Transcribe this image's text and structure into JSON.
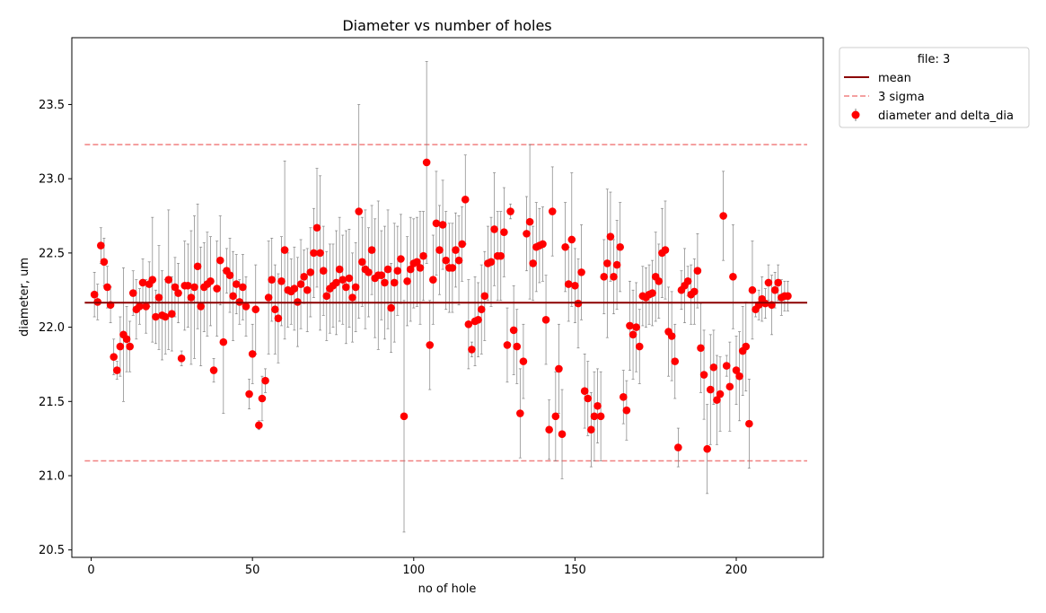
{
  "chart_data": {
    "type": "scatter",
    "title": "Diameter vs number of holes",
    "xlabel": "no of hole",
    "ylabel": "diameter, um",
    "xlim": [
      -6,
      227
    ],
    "ylim": [
      20.45,
      23.95
    ],
    "x_ticks": [
      0,
      50,
      100,
      150,
      200
    ],
    "y_ticks": [
      20.5,
      21.0,
      21.5,
      22.0,
      22.5,
      23.0,
      23.5
    ],
    "grid": false,
    "legend": {
      "title": "file: 3",
      "placement": "outside-top-right",
      "entries": [
        "mean",
        "3 sigma",
        "diameter and delta_dia"
      ]
    },
    "mean": 22.165,
    "sigma3_upper": 23.23,
    "sigma3_lower": 21.1,
    "mean_color": "#8b0000",
    "sigma_color": "#f08080",
    "point_color": "#ff0000",
    "errorbar_color": "#808080",
    "x": [
      1,
      2,
      3,
      4,
      5,
      6,
      7,
      8,
      9,
      10,
      11,
      12,
      13,
      14,
      15,
      16,
      17,
      18,
      19,
      20,
      21,
      22,
      23,
      24,
      25,
      26,
      27,
      28,
      29,
      30,
      31,
      32,
      33,
      34,
      35,
      36,
      37,
      38,
      39,
      40,
      41,
      42,
      43,
      44,
      45,
      46,
      47,
      48,
      49,
      50,
      51,
      52,
      53,
      54,
      55,
      56,
      57,
      58,
      59,
      60,
      61,
      62,
      63,
      64,
      65,
      66,
      67,
      68,
      69,
      70,
      71,
      72,
      73,
      74,
      75,
      76,
      77,
      78,
      79,
      80,
      81,
      82,
      83,
      84,
      85,
      86,
      87,
      88,
      89,
      90,
      91,
      92,
      93,
      94,
      95,
      96,
      97,
      98,
      99,
      100,
      101,
      102,
      103,
      104,
      105,
      106,
      107,
      108,
      109,
      110,
      111,
      112,
      113,
      114,
      115,
      116,
      117,
      118,
      119,
      120,
      121,
      122,
      123,
      124,
      125,
      126,
      127,
      128,
      129,
      130,
      131,
      132,
      133,
      134,
      135,
      136,
      137,
      138,
      139,
      140,
      141,
      142,
      143,
      144,
      145,
      146,
      147,
      148,
      149,
      150,
      151,
      152,
      153,
      154,
      155,
      156,
      157,
      158,
      159,
      160,
      161,
      162,
      163,
      164,
      165,
      166,
      167,
      168,
      169,
      170,
      171,
      172,
      173,
      174,
      175,
      176,
      177,
      178,
      179,
      180,
      181,
      182,
      183,
      184,
      185,
      186,
      187,
      188,
      189,
      190,
      191,
      192,
      193,
      194,
      195,
      196,
      197,
      198,
      199,
      200,
      201,
      202,
      203,
      204,
      205,
      206,
      207,
      208,
      209,
      210,
      211,
      212,
      213,
      214,
      215,
      216
    ],
    "y": [
      22.22,
      22.17,
      22.55,
      22.44,
      22.27,
      22.15,
      21.8,
      21.71,
      21.87,
      21.95,
      21.92,
      21.87,
      22.23,
      22.12,
      22.14,
      22.3,
      22.14,
      22.29,
      22.32,
      22.07,
      22.2,
      22.08,
      22.07,
      22.32,
      22.09,
      22.27,
      22.23,
      21.79,
      22.28,
      22.28,
      22.2,
      22.27,
      22.41,
      22.14,
      22.27,
      22.29,
      22.31,
      21.71,
      22.26,
      22.45,
      21.9,
      22.38,
      22.35,
      22.21,
      22.29,
      22.17,
      22.27,
      22.14,
      21.55,
      21.82,
      22.12,
      21.34,
      21.52,
      21.64,
      22.2,
      22.32,
      22.12,
      22.06,
      22.31,
      22.52,
      22.25,
      22.24,
      22.26,
      22.17,
      22.29,
      22.34,
      22.25,
      22.37,
      22.5,
      22.67,
      22.5,
      22.38,
      22.21,
      22.26,
      22.28,
      22.3,
      22.39,
      22.32,
      22.27,
      22.33,
      22.2,
      22.27,
      22.78,
      22.44,
      22.39,
      22.37,
      22.52,
      22.33,
      22.35,
      22.35,
      22.3,
      22.39,
      22.13,
      22.3,
      22.38,
      22.46,
      21.4,
      22.31,
      22.39,
      22.43,
      22.44,
      22.4,
      22.48,
      23.11,
      21.88,
      22.32,
      22.7,
      22.52,
      22.69,
      22.45,
      22.4,
      22.4,
      22.52,
      22.45,
      22.56,
      22.86,
      22.02,
      21.85,
      22.04,
      22.05,
      22.12,
      22.21,
      22.43,
      22.44,
      22.66,
      22.48,
      22.48,
      22.64,
      21.88,
      22.78,
      21.98,
      21.87,
      21.42,
      21.77,
      22.63,
      22.71,
      22.43,
      22.54,
      22.55,
      22.56,
      22.05,
      21.31,
      22.78,
      21.4,
      21.72,
      21.28,
      22.54,
      22.29,
      22.59,
      22.28,
      22.16,
      22.37,
      21.57,
      21.52,
      21.31,
      21.4,
      21.47,
      21.4,
      22.34,
      22.43,
      22.61,
      22.34,
      22.42,
      22.54,
      21.53,
      21.44,
      22.01,
      21.95,
      22.0,
      21.87,
      22.21,
      22.2,
      22.22,
      22.23,
      22.34,
      22.31,
      22.5,
      22.52,
      21.97,
      21.94,
      21.77,
      21.19,
      22.25,
      22.28,
      22.31,
      22.22,
      22.24,
      22.38,
      21.86,
      21.68,
      21.18,
      21.58,
      21.73,
      21.51,
      21.55,
      22.75,
      21.74,
      21.6,
      22.34,
      21.71,
      21.67,
      21.84,
      21.87,
      21.35,
      22.25,
      22.12,
      22.15,
      22.19,
      22.16,
      22.3,
      22.15,
      22.25,
      22.3,
      22.2,
      22.21,
      22.21
    ],
    "err": [
      0.15,
      0.12,
      0.12,
      0.16,
      0.14,
      0.12,
      0.12,
      0.06,
      0.2,
      0.45,
      0.22,
      0.17,
      0.15,
      0.2,
      0.12,
      0.16,
      0.18,
      0.15,
      0.42,
      0.18,
      0.35,
      0.3,
      0.25,
      0.47,
      0.25,
      0.2,
      0.2,
      0.05,
      0.3,
      0.28,
      0.45,
      0.48,
      0.42,
      0.4,
      0.3,
      0.35,
      0.3,
      0.08,
      0.32,
      0.3,
      0.48,
      0.15,
      0.25,
      0.3,
      0.2,
      0.15,
      0.22,
      0.2,
      0.1,
      0.2,
      0.3,
      0.03,
      0.15,
      0.08,
      0.38,
      0.28,
      0.3,
      0.3,
      0.3,
      0.6,
      0.25,
      0.22,
      0.28,
      0.3,
      0.3,
      0.18,
      0.28,
      0.3,
      0.3,
      0.4,
      0.52,
      0.3,
      0.3,
      0.3,
      0.28,
      0.35,
      0.35,
      0.3,
      0.38,
      0.33,
      0.3,
      0.3,
      0.72,
      0.3,
      0.4,
      0.3,
      0.3,
      0.4,
      0.5,
      0.3,
      0.38,
      0.4,
      0.3,
      0.4,
      0.3,
      0.3,
      0.78,
      0.3,
      0.35,
      0.3,
      0.3,
      0.38,
      0.3,
      0.68,
      0.3,
      0.3,
      0.35,
      0.3,
      0.3,
      0.33,
      0.3,
      0.3,
      0.25,
      0.3,
      0.25,
      0.3,
      0.3,
      0.05,
      0.3,
      0.25,
      0.3,
      0.3,
      0.25,
      0.3,
      0.38,
      0.3,
      0.3,
      0.3,
      0.25,
      0.05,
      0.3,
      0.25,
      0.3,
      0.25,
      0.25,
      0.52,
      0.25,
      0.3,
      0.25,
      0.25,
      0.3,
      0.2,
      0.3,
      0.3,
      0.3,
      0.3,
      0.3,
      0.25,
      0.45,
      0.25,
      0.3,
      0.32,
      0.25,
      0.25,
      0.25,
      0.3,
      0.25,
      0.3,
      0.25,
      0.5,
      0.3,
      0.25,
      0.3,
      0.3,
      0.18,
      0.2,
      0.3,
      0.3,
      0.3,
      0.25,
      0.2,
      0.2,
      0.2,
      0.22,
      0.3,
      0.25,
      0.3,
      0.33,
      0.3,
      0.3,
      0.25,
      0.13,
      0.13,
      0.25,
      0.1,
      0.2,
      0.22,
      0.25,
      0.3,
      0.3,
      0.3,
      0.37,
      0.25,
      0.3,
      0.25,
      0.3,
      0.07,
      0.3,
      0.35,
      0.23,
      0.3,
      0.3,
      0.3,
      0.3,
      0.33,
      0.05,
      0.1,
      0.15,
      0.1,
      0.12,
      0.2,
      0.12,
      0.12,
      0.12,
      0.1,
      0.1
    ]
  }
}
